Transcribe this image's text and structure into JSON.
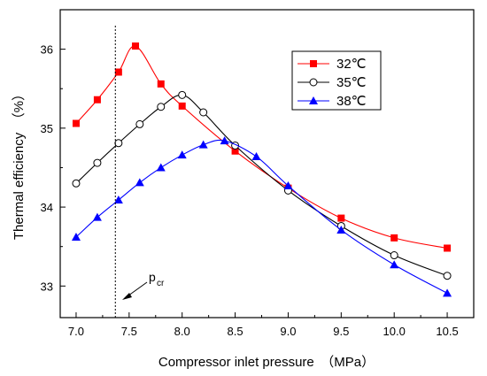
{
  "chart_data": {
    "type": "line",
    "title": "",
    "xlabel": "Compressor inlet pressure　（MPa）",
    "ylabel": "Thermal efficiency　（%）",
    "xlim": [
      6.85,
      10.75
    ],
    "ylim": [
      32.6,
      36.5
    ],
    "xticks": [
      "7.0",
      "7.5",
      "8.0",
      "8.5",
      "9.0",
      "9.5",
      "10.0",
      "10.5"
    ],
    "yticks": [
      "33",
      "34",
      "35",
      "36"
    ],
    "grid": false,
    "legend_position": "top-right",
    "series": [
      {
        "name": "32℃",
        "color": "#ff0000",
        "marker": "square",
        "x": [
          7.0,
          7.2,
          7.4,
          7.56,
          7.8,
          8.0,
          8.5,
          9.0,
          9.5,
          10.0,
          10.5
        ],
        "y": [
          35.06,
          35.36,
          35.71,
          36.04,
          35.56,
          35.28,
          34.71,
          34.24,
          33.86,
          33.61,
          33.48
        ]
      },
      {
        "name": "35℃",
        "color": "#000000",
        "marker": "circle-open",
        "x": [
          7.0,
          7.2,
          7.4,
          7.6,
          7.8,
          8.0,
          8.2,
          8.5,
          9.0,
          9.5,
          10.0,
          10.5
        ],
        "y": [
          34.3,
          34.56,
          34.81,
          35.05,
          35.27,
          35.42,
          35.2,
          34.78,
          34.21,
          33.76,
          33.39,
          33.13
        ]
      },
      {
        "name": "38℃",
        "color": "#0000ff",
        "marker": "triangle",
        "x": [
          7.0,
          7.2,
          7.4,
          7.6,
          7.8,
          8.0,
          8.2,
          8.4,
          8.7,
          9.0,
          9.5,
          10.0,
          10.5
        ],
        "y": [
          33.62,
          33.87,
          34.09,
          34.31,
          34.5,
          34.66,
          34.79,
          34.84,
          34.64,
          34.27,
          33.71,
          33.27,
          32.91
        ]
      }
    ],
    "annotations": [
      {
        "text": "p",
        "subscript": "cr",
        "x_value": 7.37,
        "style": "dotted-vertical-line",
        "arrow": true
      }
    ]
  }
}
